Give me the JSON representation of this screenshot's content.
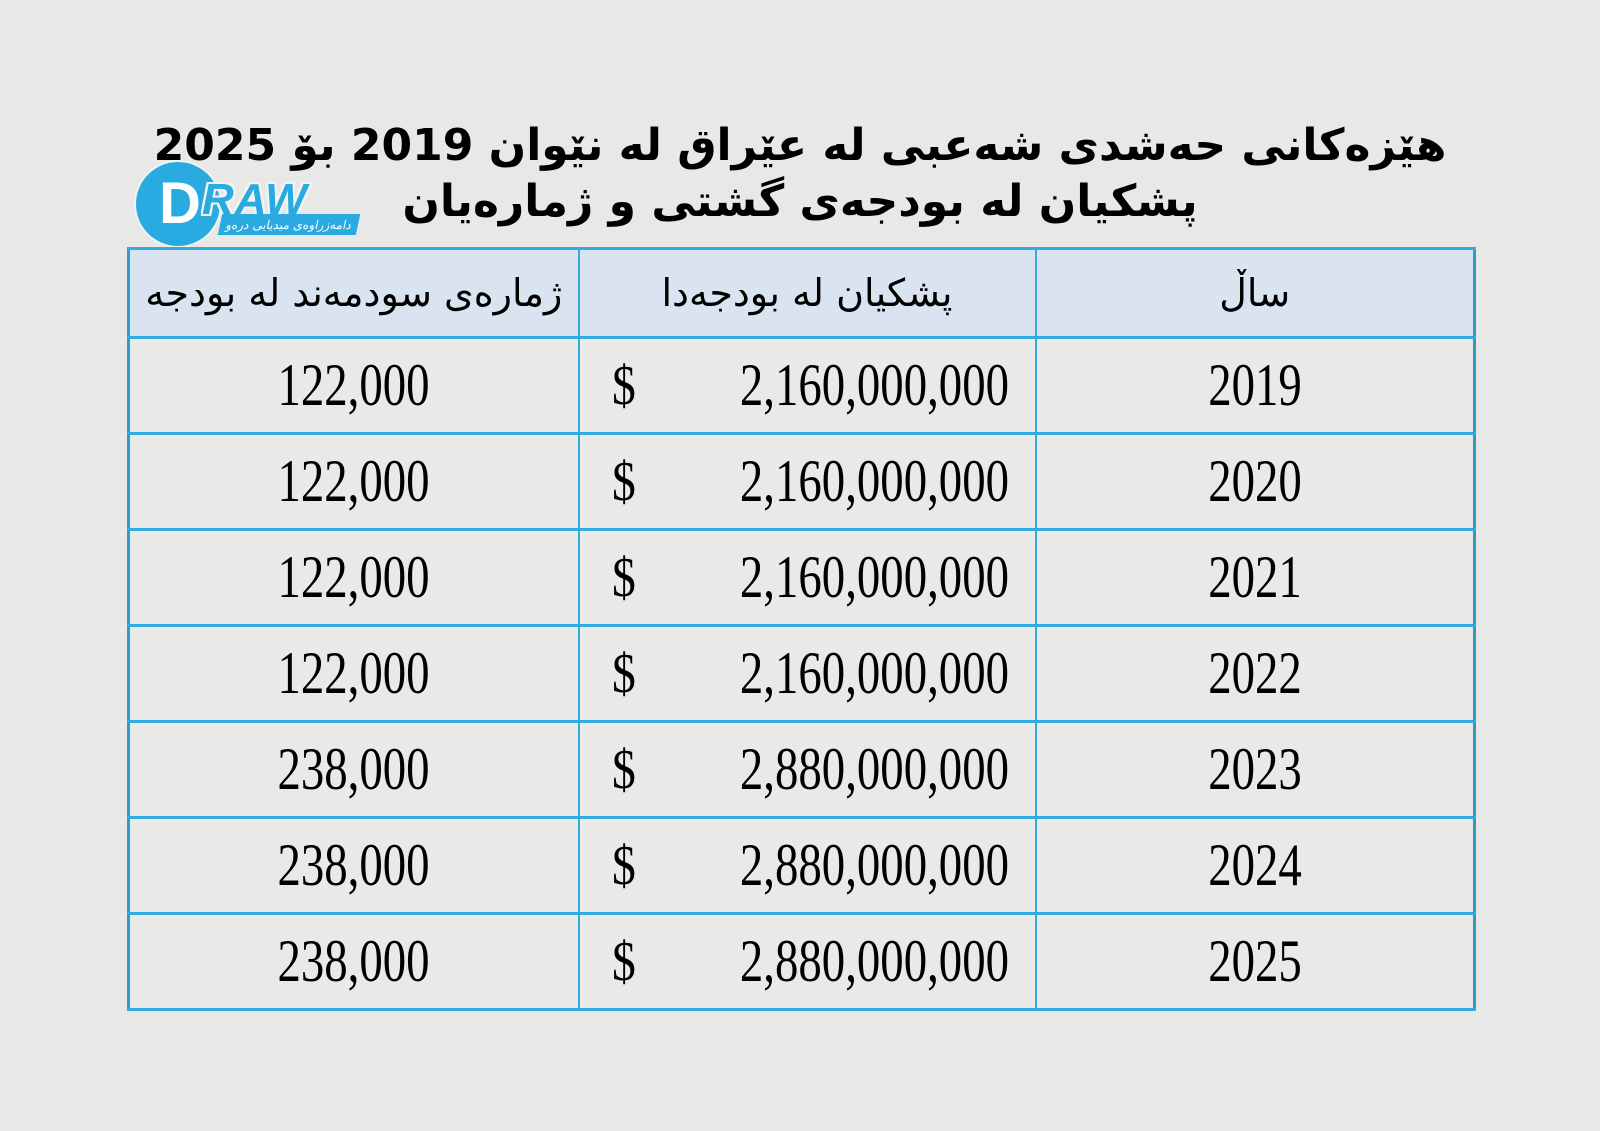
{
  "logo": {
    "letter": "D",
    "wordmark": "RAW",
    "tagline": "دامەزراوەی میدیایی درەو",
    "brand_color": "#29abe2"
  },
  "title": {
    "line1": "هێزەکانی حەشدی شەعبی لە عێراق لە نێوان 2019 بۆ 2025",
    "line2": "پشکیان لە بودجەی گشتی و ژمارەیان"
  },
  "table": {
    "headers": {
      "beneficiaries": "ژمارەی سودمەند لە بودجە",
      "budget_share": "پشکیان لە بودجەدا",
      "year": "ساڵ"
    },
    "currency_symbol": "$",
    "rows": [
      {
        "year": "2019",
        "budget": "2,160,000,000",
        "beneficiaries": "122,000"
      },
      {
        "year": "2020",
        "budget": "2,160,000,000",
        "beneficiaries": "122,000"
      },
      {
        "year": "2021",
        "budget": "2,160,000,000",
        "beneficiaries": "122,000"
      },
      {
        "year": "2022",
        "budget": "2,160,000,000",
        "beneficiaries": "122,000"
      },
      {
        "year": "2023",
        "budget": "2,880,000,000",
        "beneficiaries": "238,000"
      },
      {
        "year": "2024",
        "budget": "2,880,000,000",
        "beneficiaries": "238,000"
      },
      {
        "year": "2025",
        "budget": "2,880,000,000",
        "beneficiaries": "238,000"
      }
    ]
  },
  "chart_data": {
    "type": "table",
    "title": "هێزەکانی حەشدی شەعبی لە عێراق لە نێوان 2019 بۆ 2025 — پشکیان لە بودجەی گشتی و ژمارەیان",
    "columns": [
      "ژمارەی سودمەند لە بودجە",
      "پشکیان لە بودجەدا",
      "ساڵ"
    ],
    "x": [
      2019,
      2020,
      2021,
      2022,
      2023,
      2024,
      2025
    ],
    "series": [
      {
        "name": "budget_share_usd",
        "values": [
          2160000000,
          2160000000,
          2160000000,
          2160000000,
          2880000000,
          2880000000,
          2880000000
        ]
      },
      {
        "name": "beneficiaries_count",
        "values": [
          122000,
          122000,
          122000,
          122000,
          238000,
          238000,
          238000
        ]
      }
    ],
    "currency": "$"
  }
}
